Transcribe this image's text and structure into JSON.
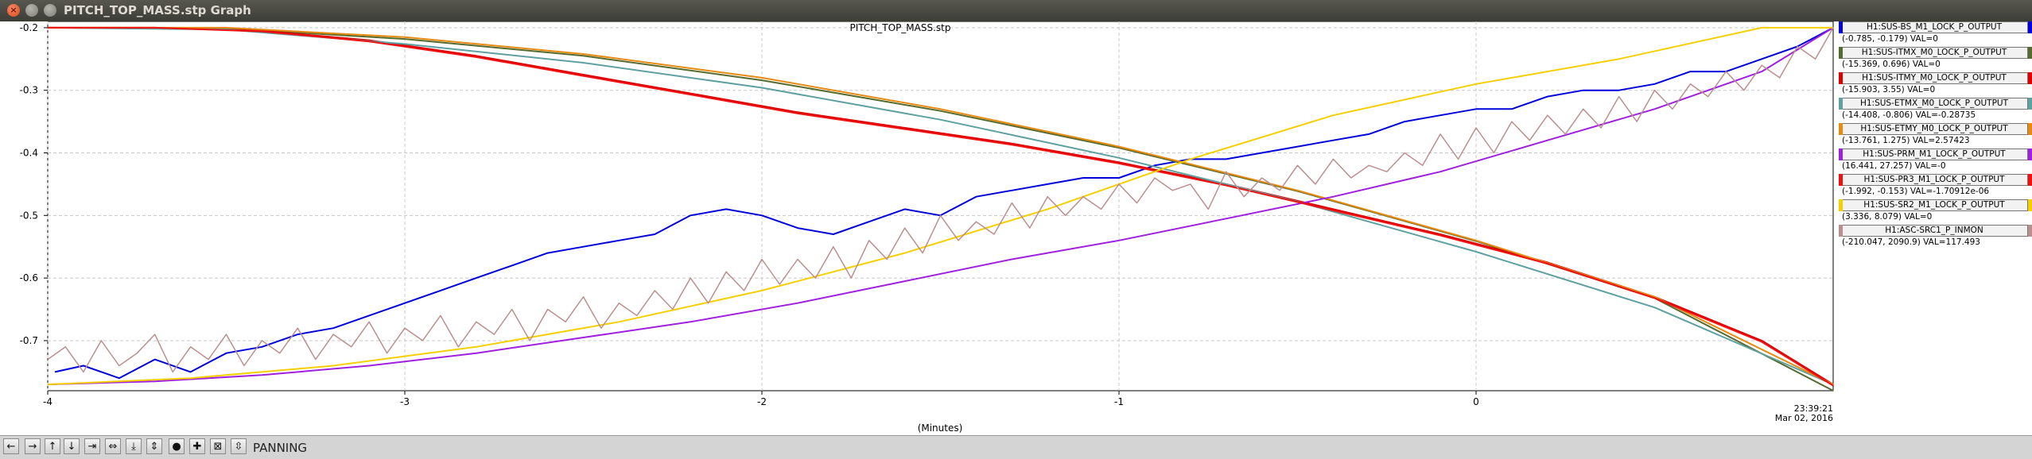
{
  "window": {
    "title": "PITCH_TOP_MASS.stp Graph",
    "buttons": {
      "close": "×",
      "minimize": "",
      "maximize": ""
    }
  },
  "chart_data": {
    "type": "line",
    "title": "PITCH_TOP_MASS.stp",
    "xlabel": "(Minutes)",
    "ylabel": "",
    "xlim": [
      -4,
      1
    ],
    "ylim": [
      -0.78,
      -0.19
    ],
    "grid": true,
    "legend_position": "right",
    "x_ticks": [
      {
        "value": -4,
        "label": "-4"
      },
      {
        "value": -3,
        "label": "-3"
      },
      {
        "value": -2,
        "label": "-2"
      },
      {
        "value": -1,
        "label": "-1"
      },
      {
        "value": 0,
        "label": "0"
      }
    ],
    "y_ticks": [
      {
        "value": -0.2,
        "label": "-0.2"
      },
      {
        "value": -0.3,
        "label": "-0.3"
      },
      {
        "value": -0.4,
        "label": "-0.4"
      },
      {
        "value": -0.5,
        "label": "-0.5"
      },
      {
        "value": -0.6,
        "label": "-0.6"
      },
      {
        "value": -0.7,
        "label": "-0.7"
      }
    ],
    "end_time": "23:39:21",
    "end_date": "Mar 02, 2016",
    "series": [
      {
        "name": "H1:SUS-BS_M1_LOCK_P_OUTPUT",
        "color": "#0000dd",
        "width": 2,
        "range_text": "(-0.785, -0.179)",
        "val_text": "VAL=0",
        "x": [
          -3.98,
          -3.9,
          -3.8,
          -3.7,
          -3.6,
          -3.5,
          -3.4,
          -3.3,
          -3.2,
          -3.1,
          -3.0,
          -2.9,
          -2.8,
          -2.7,
          -2.6,
          -2.5,
          -2.4,
          -2.3,
          -2.2,
          -2.1,
          -2.0,
          -1.9,
          -1.8,
          -1.7,
          -1.6,
          -1.5,
          -1.4,
          -1.3,
          -1.2,
          -1.1,
          -1.0,
          -0.9,
          -0.8,
          -0.7,
          -0.6,
          -0.5,
          -0.4,
          -0.3,
          -0.2,
          -0.1,
          0.0,
          0.1,
          0.2,
          0.3,
          0.4,
          0.5,
          0.6,
          0.7,
          0.8,
          0.9,
          1.0
        ],
        "y": [
          -0.75,
          -0.74,
          -0.76,
          -0.73,
          -0.75,
          -0.72,
          -0.71,
          -0.69,
          -0.68,
          -0.66,
          -0.64,
          -0.62,
          -0.6,
          -0.58,
          -0.56,
          -0.55,
          -0.54,
          -0.53,
          -0.5,
          -0.49,
          -0.5,
          -0.52,
          -0.53,
          -0.51,
          -0.49,
          -0.5,
          -0.47,
          -0.46,
          -0.45,
          -0.44,
          -0.44,
          -0.42,
          -0.41,
          -0.41,
          -0.4,
          -0.39,
          -0.38,
          -0.37,
          -0.35,
          -0.34,
          -0.33,
          -0.33,
          -0.31,
          -0.3,
          -0.3,
          -0.29,
          -0.27,
          -0.27,
          -0.25,
          -0.23,
          -0.2
        ]
      },
      {
        "name": "H1:SUS-ITMX_M0_LOCK_P_OUTPUT",
        "color": "#556b2f",
        "width": 2,
        "range_text": "(-15.369, 0.696)",
        "val_text": "VAL=0",
        "x": [
          -4.0,
          -3.5,
          -3.0,
          -2.5,
          -2.0,
          -1.5,
          -1.0,
          -0.5,
          0.0,
          0.5,
          1.0
        ],
        "y": [
          -0.2,
          -0.201,
          -0.218,
          -0.245,
          -0.284,
          -0.333,
          -0.392,
          -0.461,
          -0.541,
          -0.632,
          -0.78
        ]
      },
      {
        "name": "H1:SUS-ITMY_M0_LOCK_P_OUTPUT",
        "color": "#dd0000",
        "width": 2,
        "range_text": "(-15.903, 3.55)",
        "val_text": "VAL=0",
        "x": [
          -4.0,
          -3.7,
          -3.4,
          -3.1,
          -2.8,
          -2.5,
          -2.2,
          -1.9,
          -1.6,
          -1.3,
          -1.0,
          -0.7,
          -0.4,
          -0.1,
          0.2,
          0.5,
          0.8,
          1.0
        ],
        "y": [
          -0.2,
          -0.2,
          -0.205,
          -0.22,
          -0.245,
          -0.275,
          -0.305,
          -0.335,
          -0.36,
          -0.385,
          -0.415,
          -0.45,
          -0.49,
          -0.53,
          -0.575,
          -0.63,
          -0.7,
          -0.77
        ]
      },
      {
        "name": "H1:SUS-ETMX_M0_LOCK_P_OUTPUT",
        "color": "#5fa0a0",
        "width": 2,
        "range_text": "(-14.408, -0.806)",
        "val_text": "VAL=-0.28735",
        "x": [
          -4.0,
          -3.5,
          -3.0,
          -2.5,
          -2.0,
          -1.5,
          -1.0,
          -0.5,
          0.0,
          0.5,
          1.0
        ],
        "y": [
          -0.2,
          -0.203,
          -0.226,
          -0.256,
          -0.296,
          -0.347,
          -0.408,
          -0.478,
          -0.558,
          -0.647,
          -0.77
        ]
      },
      {
        "name": "H1:SUS-ETMY_M0_LOCK_P_OUTPUT",
        "color": "#e88a10",
        "width": 2,
        "range_text": "(-13.761, 1.275)",
        "val_text": "VAL=2.57423",
        "x": [
          -4.0,
          -3.5,
          -3.0,
          -2.5,
          -2.0,
          -1.5,
          -1.0,
          -0.5,
          0.0,
          0.5,
          1.0
        ],
        "y": [
          -0.2,
          -0.2,
          -0.215,
          -0.242,
          -0.28,
          -0.33,
          -0.39,
          -0.46,
          -0.54,
          -0.63,
          -0.77
        ]
      },
      {
        "name": "H1:SUS-PRM_M1_LOCK_P_OUTPUT",
        "color": "#a020e0",
        "width": 2,
        "range_text": "(16.441, 27.257)",
        "val_text": "VAL=-0",
        "x": [
          -4.0,
          -3.7,
          -3.4,
          -3.1,
          -2.8,
          -2.5,
          -2.2,
          -1.9,
          -1.6,
          -1.3,
          -1.0,
          -0.7,
          -0.4,
          -0.1,
          0.2,
          0.5,
          0.8,
          1.0
        ],
        "y": [
          -0.77,
          -0.765,
          -0.755,
          -0.74,
          -0.72,
          -0.695,
          -0.67,
          -0.64,
          -0.605,
          -0.57,
          -0.54,
          -0.505,
          -0.47,
          -0.43,
          -0.38,
          -0.33,
          -0.27,
          -0.2
        ]
      },
      {
        "name": "H1:SUS-PR3_M1_LOCK_P_OUTPUT",
        "color": "#ee1111",
        "width": 2,
        "range_text": "(-1.992, -0.153)",
        "val_text": "VAL=-1.70912e-06",
        "x": [
          -4.0,
          -3.7,
          -3.4,
          -3.1,
          -2.8,
          -2.5,
          -2.2,
          -1.9,
          -1.6,
          -1.3,
          -1.0,
          -0.7,
          -0.4,
          -0.1,
          0.2,
          0.5,
          0.8,
          1.0
        ],
        "y": [
          -0.2,
          -0.2,
          -0.206,
          -0.222,
          -0.247,
          -0.277,
          -0.307,
          -0.337,
          -0.362,
          -0.387,
          -0.417,
          -0.452,
          -0.492,
          -0.532,
          -0.577,
          -0.632,
          -0.702,
          -0.772
        ]
      },
      {
        "name": "H1:SUS-SR2_M1_LOCK_P_OUTPUT",
        "color": "#f5d000",
        "width": 2,
        "range_text": "(3.336, 8.079)",
        "val_text": "VAL=0",
        "x": [
          -4.0,
          -3.6,
          -3.2,
          -2.8,
          -2.4,
          -2.0,
          -1.6,
          -1.2,
          -0.8,
          -0.4,
          0.0,
          0.4,
          0.8,
          1.0
        ],
        "y": [
          -0.77,
          -0.76,
          -0.74,
          -0.71,
          -0.67,
          -0.62,
          -0.56,
          -0.49,
          -0.41,
          -0.34,
          -0.29,
          -0.25,
          -0.2,
          -0.2
        ]
      },
      {
        "name": "H1:ASC-SRC1_P_INMON",
        "color": "#bc8f8f",
        "width": 1.5,
        "range_text": "(-210.047, 2090.9)",
        "val_text": "VAL=117.493",
        "x": [
          -4.0,
          -3.95,
          -3.9,
          -3.85,
          -3.8,
          -3.75,
          -3.7,
          -3.65,
          -3.6,
          -3.55,
          -3.5,
          -3.45,
          -3.4,
          -3.35,
          -3.3,
          -3.25,
          -3.2,
          -3.15,
          -3.1,
          -3.05,
          -3.0,
          -2.95,
          -2.9,
          -2.85,
          -2.8,
          -2.75,
          -2.7,
          -2.65,
          -2.6,
          -2.55,
          -2.5,
          -2.45,
          -2.4,
          -2.35,
          -2.3,
          -2.25,
          -2.2,
          -2.15,
          -2.1,
          -2.05,
          -2.0,
          -1.95,
          -1.9,
          -1.85,
          -1.8,
          -1.75,
          -1.7,
          -1.65,
          -1.6,
          -1.55,
          -1.5,
          -1.45,
          -1.4,
          -1.35,
          -1.3,
          -1.25,
          -1.2,
          -1.15,
          -1.1,
          -1.05,
          -1.0,
          -0.95,
          -0.9,
          -0.85,
          -0.8,
          -0.75,
          -0.7,
          -0.65,
          -0.6,
          -0.55,
          -0.5,
          -0.45,
          -0.4,
          -0.35,
          -0.3,
          -0.25,
          -0.2,
          -0.15,
          -0.1,
          -0.05,
          0.0,
          0.05,
          0.1,
          0.15,
          0.2,
          0.25,
          0.3,
          0.35,
          0.4,
          0.45,
          0.5,
          0.55,
          0.6,
          0.65,
          0.7,
          0.75,
          0.8,
          0.85,
          0.9,
          0.95,
          1.0
        ],
        "y": [
          -0.73,
          -0.71,
          -0.75,
          -0.7,
          -0.74,
          -0.72,
          -0.69,
          -0.75,
          -0.71,
          -0.73,
          -0.69,
          -0.74,
          -0.7,
          -0.72,
          -0.68,
          -0.73,
          -0.69,
          -0.71,
          -0.67,
          -0.72,
          -0.68,
          -0.7,
          -0.66,
          -0.71,
          -0.67,
          -0.69,
          -0.65,
          -0.7,
          -0.65,
          -0.67,
          -0.63,
          -0.68,
          -0.64,
          -0.66,
          -0.62,
          -0.65,
          -0.6,
          -0.64,
          -0.59,
          -0.62,
          -0.57,
          -0.61,
          -0.57,
          -0.6,
          -0.55,
          -0.6,
          -0.54,
          -0.57,
          -0.52,
          -0.56,
          -0.5,
          -0.54,
          -0.51,
          -0.53,
          -0.48,
          -0.52,
          -0.47,
          -0.5,
          -0.47,
          -0.49,
          -0.45,
          -0.48,
          -0.44,
          -0.46,
          -0.45,
          -0.49,
          -0.43,
          -0.47,
          -0.44,
          -0.46,
          -0.42,
          -0.45,
          -0.41,
          -0.44,
          -0.42,
          -0.43,
          -0.4,
          -0.42,
          -0.37,
          -0.41,
          -0.36,
          -0.4,
          -0.35,
          -0.38,
          -0.34,
          -0.37,
          -0.33,
          -0.36,
          -0.31,
          -0.35,
          -0.3,
          -0.33,
          -0.29,
          -0.31,
          -0.27,
          -0.3,
          -0.26,
          -0.28,
          -0.23,
          -0.25,
          -0.2
        ]
      }
    ]
  },
  "toolbar": {
    "buttons": [
      {
        "name": "pan-left-button",
        "glyph": "←"
      },
      {
        "name": "pan-right-button",
        "glyph": "→"
      },
      {
        "name": "pan-up-button",
        "glyph": "↑"
      },
      {
        "name": "pan-down-button",
        "glyph": "↓"
      },
      {
        "name": "shrink-horizontal-button",
        "glyph": "⇥"
      },
      {
        "name": "expand-horizontal-button",
        "glyph": "⇔"
      },
      {
        "name": "shrink-vertical-button",
        "glyph": "⤓"
      },
      {
        "name": "expand-vertical-button",
        "glyph": "⇕"
      },
      {
        "name": "reset-zoom-button",
        "glyph": "●"
      },
      {
        "name": "zoom-in-button",
        "glyph": "✚"
      },
      {
        "name": "fit-view-button",
        "glyph": "⊠"
      },
      {
        "name": "auto-scale-button",
        "glyph": "⇳"
      }
    ],
    "mode_label": "PANNING"
  }
}
